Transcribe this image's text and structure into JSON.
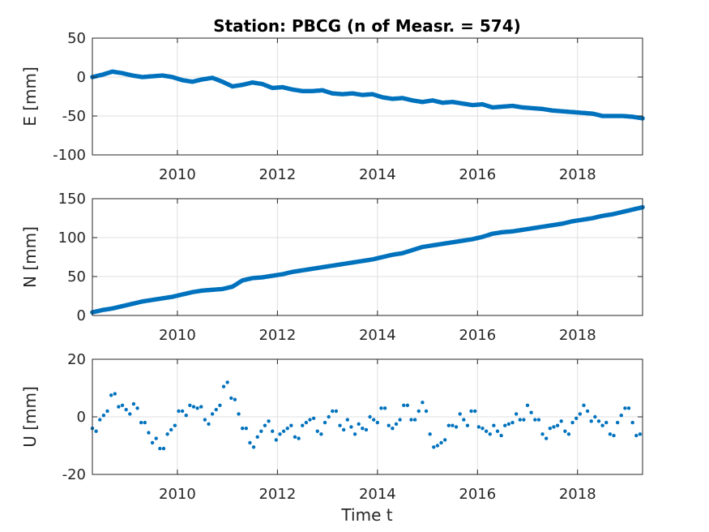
{
  "figure": {
    "title": "Station: PBCG (n of Measr. = 574)",
    "xlabel": "Time t"
  },
  "chart_data": [
    {
      "type": "scatter",
      "panel": "E",
      "ylabel": "E [mm]",
      "xlim": [
        2008.3,
        2019.3
      ],
      "ylim": [
        -100,
        50
      ],
      "xticks": [
        2010,
        2012,
        2014,
        2016,
        2018
      ],
      "yticks": [
        -100,
        -50,
        0,
        50
      ],
      "grid": true,
      "marker_color": "#0072BD",
      "x": [
        2008.3,
        2008.5,
        2008.7,
        2008.9,
        2009.1,
        2009.3,
        2009.5,
        2009.7,
        2009.9,
        2010.1,
        2010.3,
        2010.5,
        2010.7,
        2010.9,
        2011.1,
        2011.3,
        2011.5,
        2011.7,
        2011.9,
        2012.1,
        2012.3,
        2012.5,
        2012.7,
        2012.9,
        2013.1,
        2013.3,
        2013.5,
        2013.7,
        2013.9,
        2014.1,
        2014.3,
        2014.5,
        2014.7,
        2014.9,
        2015.1,
        2015.3,
        2015.5,
        2015.7,
        2015.9,
        2016.1,
        2016.3,
        2016.5,
        2016.7,
        2016.9,
        2017.1,
        2017.3,
        2017.5,
        2017.7,
        2017.9,
        2018.1,
        2018.3,
        2018.5,
        2018.7,
        2018.9,
        2019.1,
        2019.3
      ],
      "y": [
        0,
        3,
        7,
        5,
        2,
        0,
        1,
        2,
        0,
        -4,
        -6,
        -3,
        -1,
        -6,
        -12,
        -10,
        -7,
        -9,
        -14,
        -13,
        -16,
        -18,
        -18,
        -17,
        -21,
        -22,
        -21,
        -23,
        -22,
        -26,
        -28,
        -27,
        -30,
        -32,
        -30,
        -33,
        -32,
        -34,
        -36,
        -35,
        -39,
        -38,
        -37,
        -39,
        -40,
        -41,
        -43,
        -44,
        -45,
        -46,
        -47,
        -50,
        -50,
        -50,
        -51,
        -53
      ]
    },
    {
      "type": "scatter",
      "panel": "N",
      "ylabel": "N [mm]",
      "xlim": [
        2008.3,
        2019.3
      ],
      "ylim": [
        0,
        150
      ],
      "xticks": [
        2010,
        2012,
        2014,
        2016,
        2018
      ],
      "yticks": [
        0,
        50,
        100,
        150
      ],
      "grid": true,
      "marker_color": "#0072BD",
      "x": [
        2008.3,
        2008.5,
        2008.7,
        2008.9,
        2009.1,
        2009.3,
        2009.5,
        2009.7,
        2009.9,
        2010.1,
        2010.3,
        2010.5,
        2010.7,
        2010.9,
        2011.1,
        2011.3,
        2011.5,
        2011.7,
        2011.9,
        2012.1,
        2012.3,
        2012.5,
        2012.7,
        2012.9,
        2013.1,
        2013.3,
        2013.5,
        2013.7,
        2013.9,
        2014.1,
        2014.3,
        2014.5,
        2014.7,
        2014.9,
        2015.1,
        2015.3,
        2015.5,
        2015.7,
        2015.9,
        2016.1,
        2016.3,
        2016.5,
        2016.7,
        2016.9,
        2017.1,
        2017.3,
        2017.5,
        2017.7,
        2017.9,
        2018.1,
        2018.3,
        2018.5,
        2018.7,
        2018.9,
        2019.1,
        2019.3
      ],
      "y": [
        4,
        7,
        9,
        12,
        15,
        18,
        20,
        22,
        24,
        27,
        30,
        32,
        33,
        34,
        37,
        45,
        48,
        49,
        51,
        53,
        56,
        58,
        60,
        62,
        64,
        66,
        68,
        70,
        72,
        75,
        78,
        80,
        84,
        88,
        90,
        92,
        94,
        96,
        98,
        101,
        105,
        107,
        108,
        110,
        112,
        114,
        116,
        118,
        121,
        123,
        125,
        128,
        130,
        133,
        136,
        139
      ]
    },
    {
      "type": "scatter",
      "panel": "U",
      "ylabel": "U [mm]",
      "xlim": [
        2008.3,
        2019.3
      ],
      "ylim": [
        -20,
        20
      ],
      "xticks": [
        2010,
        2012,
        2014,
        2016,
        2018
      ],
      "yticks": [
        -20,
        0,
        20
      ],
      "grid": true,
      "marker_color": "#0072BD",
      "x": [
        2008.3,
        2008.45,
        2008.6,
        2008.75,
        2008.9,
        2009.05,
        2009.2,
        2009.35,
        2009.5,
        2009.65,
        2009.8,
        2009.95,
        2010.1,
        2010.25,
        2010.4,
        2010.55,
        2010.7,
        2010.85,
        2011.0,
        2011.15,
        2011.3,
        2011.45,
        2011.6,
        2011.75,
        2011.9,
        2012.05,
        2012.2,
        2012.35,
        2012.5,
        2012.65,
        2012.8,
        2012.95,
        2013.1,
        2013.25,
        2013.4,
        2013.55,
        2013.7,
        2013.85,
        2014.0,
        2014.15,
        2014.3,
        2014.45,
        2014.6,
        2014.75,
        2014.9,
        2015.05,
        2015.2,
        2015.35,
        2015.5,
        2015.65,
        2015.8,
        2015.95,
        2016.1,
        2016.25,
        2016.4,
        2016.55,
        2016.7,
        2016.85,
        2017.0,
        2017.15,
        2017.3,
        2017.45,
        2017.6,
        2017.75,
        2017.9,
        2018.05,
        2018.2,
        2018.35,
        2018.5,
        2018.65,
        2018.8,
        2018.95,
        2019.1,
        2019.25
      ],
      "y": [
        -4,
        -1,
        2,
        8,
        4,
        1,
        3,
        -2,
        -9,
        -11,
        -6,
        -3,
        2,
        4,
        3,
        -1,
        1,
        4,
        12,
        6,
        -4,
        -9,
        -7,
        -3,
        -5,
        -6,
        -4,
        -7,
        -3,
        -1,
        -5,
        -2,
        2,
        -3,
        -1,
        -6,
        -4,
        0,
        -2,
        3,
        -4,
        -1,
        4,
        -1,
        5,
        -6,
        -10,
        -8,
        -3,
        1,
        -3,
        2,
        -4,
        -6,
        -5,
        -3,
        -2,
        -1,
        4,
        -1,
        -6,
        -4,
        -3,
        -5,
        -2,
        1,
        2,
        0,
        -3,
        -6,
        -2,
        3,
        -2,
        -6
      ]
    }
  ]
}
